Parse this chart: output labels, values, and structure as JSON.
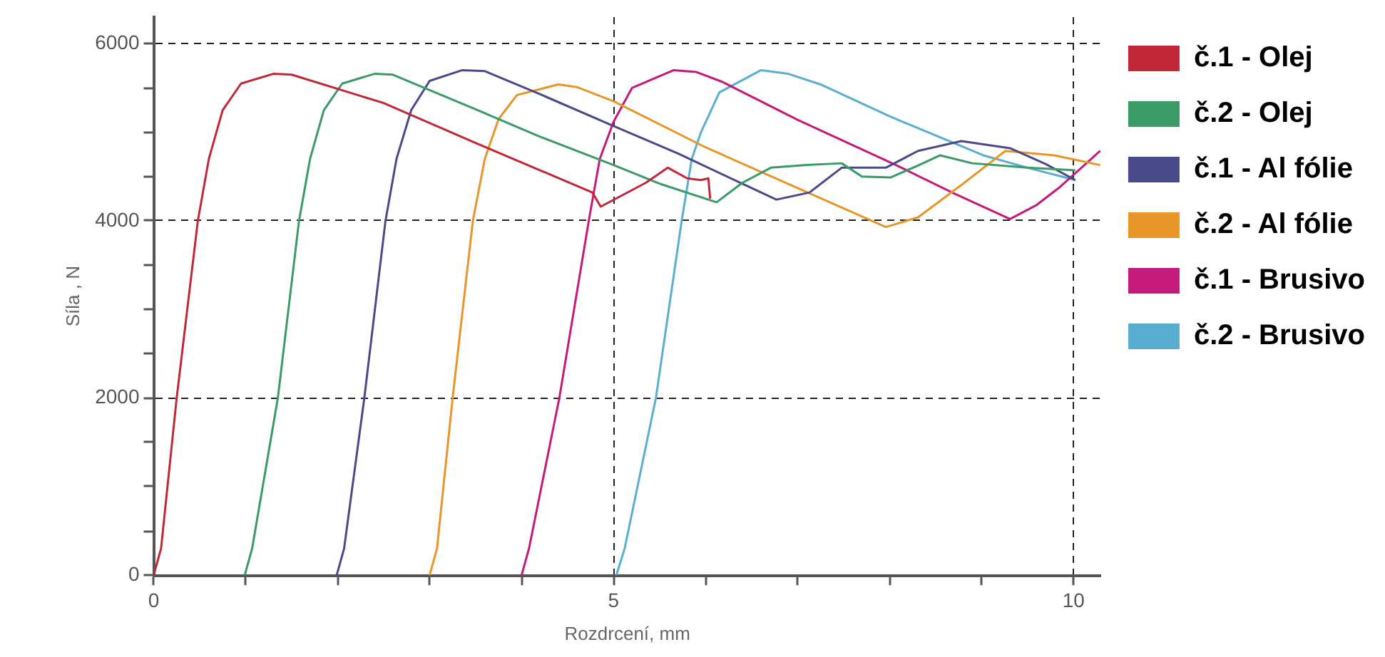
{
  "chart_data": {
    "type": "line",
    "xlabel": "Rozdrcení, mm",
    "ylabel": "Síla , N",
    "xlim": [
      0,
      10.3
    ],
    "ylim": [
      0,
      6300
    ],
    "xticks": [
      0,
      {
        "value": 1,
        "label": null
      },
      {
        "value": 2,
        "label": null
      },
      {
        "value": 3,
        "label": null
      },
      {
        "value": 4,
        "label": null
      },
      5,
      {
        "value": 6,
        "label": null
      },
      {
        "value": 7,
        "label": null
      },
      {
        "value": 8,
        "label": null
      },
      {
        "value": 9,
        "label": null
      },
      10
    ],
    "yticks": [
      0,
      {
        "value": 500,
        "label": null
      },
      {
        "value": 1000,
        "label": null
      },
      {
        "value": 1500,
        "label": null
      },
      2000,
      {
        "value": 2500,
        "label": null
      },
      {
        "value": 3000,
        "label": null
      },
      {
        "value": 3500,
        "label": null
      },
      4000,
      {
        "value": 4500,
        "label": null
      },
      {
        "value": 5000,
        "label": null
      },
      {
        "value": 5500,
        "label": null
      },
      6000
    ],
    "grid": true,
    "legend": "right",
    "marker": "none",
    "line_style": "solid",
    "series": [
      {
        "name": "č.1 - Olej",
        "color": "#c0283a",
        "x": [
          0,
          0.08,
          0.25,
          0.48,
          0.6,
          0.75,
          0.95,
          1.3,
          1.5,
          2.5,
          3.5,
          4.77,
          4.86,
          5.35,
          5.59,
          5.8,
          5.95,
          6.03,
          6.05
        ],
        "values": [
          0,
          300,
          2000,
          4000,
          4700,
          5250,
          5550,
          5660,
          5650,
          5330,
          4880,
          4320,
          4160,
          4430,
          4600,
          4480,
          4460,
          4480,
          4250
        ]
      },
      {
        "name": "č.2 - Olej",
        "color": "#3a9a68",
        "x": [
          0.99,
          1.07,
          1.35,
          1.58,
          1.7,
          1.85,
          2.05,
          2.4,
          2.6,
          3.5,
          4.2,
          5.0,
          5.5,
          6.12,
          6.4,
          6.71,
          7.1,
          7.48,
          7.7,
          8.01,
          8.3,
          8.55,
          8.9,
          9.5,
          10.02
        ],
        "values": [
          0,
          300,
          2000,
          4000,
          4700,
          5250,
          5550,
          5660,
          5650,
          5260,
          4950,
          4630,
          4420,
          4210,
          4430,
          4600,
          4630,
          4650,
          4500,
          4490,
          4620,
          4740,
          4650,
          4600,
          4570
        ]
      },
      {
        "name": "č.1 - Al fólie",
        "color": "#4a4a8a",
        "x": [
          1.99,
          2.07,
          2.29,
          2.52,
          2.64,
          2.8,
          3.0,
          3.35,
          3.6,
          4.2,
          5.0,
          5.7,
          6.48,
          6.77,
          7.13,
          7.48,
          7.96,
          8.31,
          8.78,
          9.31,
          9.7,
          10.02
        ],
        "values": [
          0,
          300,
          2000,
          4000,
          4700,
          5250,
          5580,
          5700,
          5690,
          5430,
          5070,
          4760,
          4380,
          4240,
          4320,
          4600,
          4600,
          4790,
          4900,
          4820,
          4640,
          4460
        ]
      },
      {
        "name": "č.2 - Al fólie",
        "color": "#e8962a",
        "x": [
          3.0,
          3.08,
          3.25,
          3.47,
          3.6,
          3.75,
          3.95,
          4.4,
          4.6,
          5.0,
          6.0,
          7.0,
          7.96,
          8.31,
          8.8,
          9.26,
          9.79,
          10.29
        ],
        "values": [
          0,
          300,
          2000,
          4000,
          4700,
          5150,
          5420,
          5540,
          5510,
          5350,
          4830,
          4370,
          3930,
          4040,
          4420,
          4790,
          4740,
          4630
        ]
      },
      {
        "name": "č.1 - Brusivo",
        "color": "#c41a7a",
        "x": [
          4.0,
          4.08,
          4.41,
          4.73,
          4.85,
          5.0,
          5.2,
          5.65,
          5.9,
          6.18,
          7.0,
          8.07,
          8.7,
          9.31,
          9.6,
          9.85,
          10.29
        ],
        "values": [
          0,
          300,
          2000,
          4000,
          4700,
          5120,
          5500,
          5700,
          5680,
          5570,
          5140,
          4630,
          4310,
          4020,
          4180,
          4380,
          4790
        ]
      },
      {
        "name": "č.2 - Brusivo",
        "color": "#5aaed0",
        "x": [
          5.03,
          5.12,
          5.46,
          5.74,
          5.85,
          5.95,
          6.15,
          6.6,
          6.9,
          7.25,
          8.0,
          9.02,
          9.5,
          10.02
        ],
        "values": [
          0,
          300,
          2000,
          4000,
          4700,
          5000,
          5450,
          5700,
          5660,
          5540,
          5180,
          4740,
          4600,
          4460
        ]
      }
    ]
  }
}
